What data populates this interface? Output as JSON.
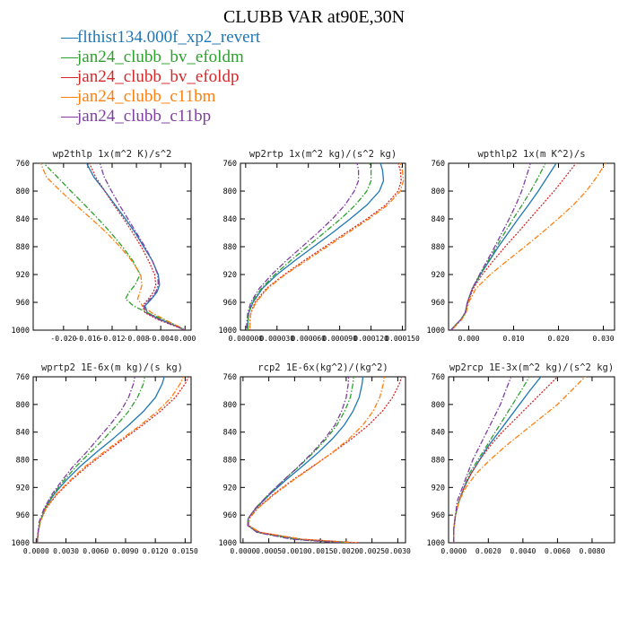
{
  "title": "CLUBB VAR at90E,30N",
  "legend": [
    {
      "name": "flthist134.000f_xp2_revert",
      "color": "#1f77b4",
      "dash": "solid"
    },
    {
      "name": "jan24_clubb_bv_efoldm",
      "color": "#2ca02c",
      "dash": "dashdot"
    },
    {
      "name": "jan24_clubb_bv_efoldp",
      "color": "#d62728",
      "dash": "dotted"
    },
    {
      "name": "jan24_clubb_c11bm",
      "color": "#ff7f0e",
      "dash": "dashdot"
    },
    {
      "name": "jan24_clubb_c11bp",
      "color": "#7f3fa0",
      "dash": "dashdot"
    }
  ],
  "chart_data": [
    {
      "type": "line",
      "title": "wp2thlp  1x(m^2 K)/s^2",
      "xlim": [
        -0.025,
        0.001
      ],
      "ylim": [
        760,
        1000
      ],
      "y_reversed": true,
      "xticks": [
        -0.02,
        -0.016,
        -0.012,
        -0.008,
        -0.004,
        0.0
      ],
      "xtick_labels": [
        "-0.020",
        "-0.016",
        "-0.012",
        "-0.008",
        "-0.004",
        "0.000"
      ],
      "yticks": [
        760,
        800,
        840,
        880,
        920,
        960,
        1000
      ],
      "y": [
        755,
        780,
        800,
        820,
        840,
        860,
        880,
        900,
        920,
        935,
        945,
        955,
        965,
        975,
        985,
        995,
        1000
      ],
      "series": [
        {
          "name": "flthist134.000f_xp2_revert",
          "x": [
            -0.0165,
            -0.015,
            -0.0132,
            -0.0115,
            -0.0098,
            -0.0082,
            -0.0068,
            -0.0054,
            -0.0044,
            -0.0042,
            -0.0046,
            -0.0055,
            -0.0066,
            -0.0062,
            -0.004,
            -0.0012,
            0.0
          ]
        },
        {
          "name": "jan24_clubb_bv_efoldm",
          "x": [
            -0.0238,
            -0.021,
            -0.0188,
            -0.0165,
            -0.0143,
            -0.0122,
            -0.0103,
            -0.0086,
            -0.0074,
            -0.0082,
            -0.0092,
            -0.0098,
            -0.0085,
            -0.0062,
            -0.0035,
            -0.001,
            0.0
          ]
        },
        {
          "name": "jan24_clubb_bv_efoldp",
          "x": [
            -0.016,
            -0.0147,
            -0.0132,
            -0.0117,
            -0.0101,
            -0.0086,
            -0.0072,
            -0.006,
            -0.005,
            -0.0048,
            -0.0052,
            -0.006,
            -0.007,
            -0.0066,
            -0.0044,
            -0.0014,
            0.0
          ]
        },
        {
          "name": "jan24_clubb_c11bm",
          "x": [
            -0.024,
            -0.0228,
            -0.0205,
            -0.018,
            -0.0154,
            -0.0129,
            -0.0107,
            -0.0088,
            -0.0073,
            -0.0071,
            -0.0074,
            -0.0078,
            -0.007,
            -0.0055,
            -0.0033,
            -0.001,
            0.0
          ]
        },
        {
          "name": "jan24_clubb_c11bp",
          "x": [
            -0.0142,
            -0.0133,
            -0.0121,
            -0.0108,
            -0.0094,
            -0.008,
            -0.0066,
            -0.0054,
            -0.0045,
            -0.0044,
            -0.0048,
            -0.0057,
            -0.0068,
            -0.0064,
            -0.0042,
            -0.0013,
            0.0
          ]
        }
      ]
    },
    {
      "type": "line",
      "title": "wp2rtp  1x(m^2 kg)/(s^2 kg)",
      "xlim": [
        -5e-06,
        0.000153
      ],
      "ylim": [
        760,
        1000
      ],
      "y_reversed": true,
      "xticks": [
        0.0,
        3e-05,
        6e-05,
        9e-05,
        0.00012,
        0.00015
      ],
      "xtick_labels": [
        "0.000000",
        "0.000030",
        "0.000060",
        "0.000090",
        "0.000120",
        "0.000150"
      ],
      "yticks": [
        760,
        800,
        840,
        880,
        920,
        960,
        1000
      ],
      "y": [
        755,
        770,
        785,
        800,
        820,
        840,
        860,
        880,
        900,
        920,
        940,
        960,
        975,
        990,
        1000
      ],
      "series": [
        {
          "name": "flthist134.000f_xp2_revert",
          "x": [
            0.000128,
            0.000131,
            0.000132,
            0.000128,
            0.000116,
            0.0001,
            8.3e-05,
            6.5e-05,
            4.7e-05,
            3e-05,
            1.6e-05,
            7e-06,
            3e-06,
            2e-06,
            2e-06
          ]
        },
        {
          "name": "jan24_clubb_bv_efoldm",
          "x": [
            0.000118,
            0.00012,
            0.00012,
            0.000116,
            0.000105,
            9.1e-05,
            7.5e-05,
            5.9e-05,
            4.3e-05,
            2.8e-05,
            1.5e-05,
            6e-06,
            3e-06,
            2e-06,
            2e-06
          ]
        },
        {
          "name": "jan24_clubb_bv_efoldp",
          "x": [
            0.000145,
            0.000148,
            0.000149,
            0.000146,
            0.000134,
            0.000116,
            9.6e-05,
            7.6e-05,
            5.6e-05,
            3.7e-05,
            2e-05,
            9e-06,
            5e-06,
            4e-06,
            4e-06
          ]
        },
        {
          "name": "jan24_clubb_c11bm",
          "x": [
            0.000147,
            0.00015,
            0.000151,
            0.000148,
            0.000136,
            0.000118,
            9.8e-05,
            7.8e-05,
            5.8e-05,
            3.8e-05,
            2.1e-05,
            1e-05,
            5e-06,
            4e-06,
            4e-06
          ]
        },
        {
          "name": "jan24_clubb_c11bp",
          "x": [
            0.000106,
            0.000108,
            0.000108,
            0.000104,
            9.5e-05,
            8.3e-05,
            6.9e-05,
            5.4e-05,
            3.9e-05,
            2.5e-05,
            1.3e-05,
            5e-06,
            2e-06,
            1e-06,
            1e-06
          ]
        }
      ]
    },
    {
      "type": "line",
      "title": "wpthlp2  1x(m K^2)/s",
      "xlim": [
        -0.0045,
        0.0325
      ],
      "ylim": [
        760,
        1000
      ],
      "y_reversed": true,
      "xticks": [
        0.0,
        0.01,
        0.02,
        0.03
      ],
      "xtick_labels": [
        "0.000",
        "0.010",
        "0.020",
        "0.030"
      ],
      "yticks": [
        760,
        800,
        840,
        880,
        920,
        960,
        1000
      ],
      "y": [
        755,
        780,
        800,
        820,
        840,
        860,
        880,
        900,
        920,
        940,
        960,
        975,
        985,
        993,
        1000
      ],
      "series": [
        {
          "name": "flthist134.000f_xp2_revert",
          "x": [
            0.02,
            0.0175,
            0.0155,
            0.0133,
            0.011,
            0.0088,
            0.0066,
            0.0046,
            0.0026,
            0.0008,
            -0.0003,
            -0.0008,
            -0.0018,
            -0.003,
            -0.004
          ]
        },
        {
          "name": "jan24_clubb_bv_efoldm",
          "x": [
            0.0175,
            0.0155,
            0.0138,
            0.0119,
            0.0099,
            0.008,
            0.0062,
            0.0044,
            0.0025,
            0.0008,
            -0.0003,
            -0.0008,
            -0.0018,
            -0.003,
            -0.004
          ]
        },
        {
          "name": "jan24_clubb_bv_efoldp",
          "x": [
            0.0245,
            0.0215,
            0.019,
            0.0163,
            0.0136,
            0.0109,
            0.0081,
            0.0055,
            0.003,
            0.001,
            -0.0002,
            -0.0007,
            -0.0017,
            -0.0029,
            -0.0039
          ]
        },
        {
          "name": "jan24_clubb_c11bm",
          "x": [
            0.031,
            0.0285,
            0.0262,
            0.0233,
            0.0199,
            0.0163,
            0.0125,
            0.0086,
            0.0048,
            0.0016,
            0.0,
            -0.0006,
            -0.0016,
            -0.0028,
            -0.0038
          ]
        },
        {
          "name": "jan24_clubb_c11bp",
          "x": [
            0.014,
            0.0128,
            0.0118,
            0.0105,
            0.009,
            0.0074,
            0.0058,
            0.0041,
            0.0024,
            0.0008,
            -0.0003,
            -0.0008,
            -0.0018,
            -0.003,
            -0.004
          ]
        }
      ]
    },
    {
      "type": "line",
      "title": "wprtp2  1E-6x(m kg)/(s kg)",
      "xlim": [
        -0.0003,
        0.0156
      ],
      "ylim": [
        760,
        1000
      ],
      "y_reversed": true,
      "xticks": [
        0.0,
        0.003,
        0.006,
        0.009,
        0.012,
        0.015
      ],
      "xtick_labels": [
        "0.0000",
        "0.0030",
        "0.0060",
        "0.0090",
        "0.0120",
        "0.0150"
      ],
      "yticks": [
        760,
        800,
        840,
        880,
        920,
        960,
        1000
      ],
      "y": [
        755,
        770,
        790,
        810,
        830,
        850,
        870,
        890,
        910,
        930,
        950,
        970,
        985,
        1000
      ],
      "series": [
        {
          "name": "flthist134.000f_xp2_revert",
          "x": [
            0.013,
            0.0127,
            0.012,
            0.0108,
            0.0093,
            0.0077,
            0.006,
            0.0044,
            0.003,
            0.0018,
            0.0009,
            0.0004,
            0.0002,
            0.0001
          ]
        },
        {
          "name": "jan24_clubb_bv_efoldm",
          "x": [
            0.011,
            0.0108,
            0.0102,
            0.0093,
            0.0081,
            0.0068,
            0.0054,
            0.004,
            0.0028,
            0.0017,
            0.0009,
            0.0004,
            0.0002,
            0.0001
          ]
        },
        {
          "name": "jan24_clubb_bv_efoldp",
          "x": [
            0.0155,
            0.015,
            0.014,
            0.0125,
            0.0107,
            0.0088,
            0.0069,
            0.0051,
            0.0035,
            0.0021,
            0.001,
            0.0004,
            0.0002,
            0.0001
          ]
        },
        {
          "name": "jan24_clubb_c11bm",
          "x": [
            0.015,
            0.0145,
            0.0136,
            0.0122,
            0.0105,
            0.0086,
            0.0067,
            0.0049,
            0.0034,
            0.002,
            0.001,
            0.0004,
            0.0002,
            0.0001
          ]
        },
        {
          "name": "jan24_clubb_c11bp",
          "x": [
            0.01,
            0.0098,
            0.0093,
            0.0085,
            0.0074,
            0.0062,
            0.005,
            0.0037,
            0.0026,
            0.0016,
            0.0008,
            0.0003,
            0.0002,
            0.0001
          ]
        }
      ]
    },
    {
      "type": "line",
      "title": "rcp2  1E-6x(kg^2)/(kg^2)",
      "xlim": [
        -5e-05,
        0.00315
      ],
      "ylim": [
        760,
        1000
      ],
      "y_reversed": true,
      "xticks": [
        0.0,
        0.0005,
        0.001,
        0.0015,
        0.002,
        0.0025,
        0.003
      ],
      "xtick_labels": [
        "0.0000",
        "0.0005",
        "0.0010",
        "0.0015",
        "0.0020",
        "0.0025",
        "0.0030"
      ],
      "yticks": [
        760,
        800,
        840,
        880,
        920,
        960,
        1000
      ],
      "y": [
        755,
        770,
        790,
        810,
        830,
        850,
        870,
        890,
        910,
        930,
        950,
        965,
        975,
        985,
        995,
        1000
      ],
      "series": [
        {
          "name": "flthist134.000f_xp2_revert",
          "x": [
            0.00233,
            0.00231,
            0.00225,
            0.00213,
            0.00196,
            0.00173,
            0.00145,
            0.00114,
            0.00082,
            0.00052,
            0.00025,
            0.0001,
            9e-05,
            0.0003,
            0.0011,
            0.00215
          ]
        },
        {
          "name": "jan24_clubb_bv_efoldm",
          "x": [
            0.00215,
            0.00213,
            0.00208,
            0.00197,
            0.00182,
            0.00161,
            0.00136,
            0.00108,
            0.00078,
            0.0005,
            0.00024,
            0.0001,
            9e-05,
            0.00028,
            0.001,
            0.002
          ]
        },
        {
          "name": "jan24_clubb_bv_efoldp",
          "x": [
            0.0031,
            0.00303,
            0.0029,
            0.0027,
            0.00243,
            0.0021,
            0.00173,
            0.00134,
            0.00095,
            0.00059,
            0.00028,
            0.00012,
            0.00011,
            0.00033,
            0.00115,
            0.00225
          ]
        },
        {
          "name": "jan24_clubb_c11bm",
          "x": [
            0.00275,
            0.00272,
            0.00265,
            0.00252,
            0.00232,
            0.00205,
            0.00172,
            0.00135,
            0.00097,
            0.00061,
            0.00029,
            0.00012,
            0.00011,
            0.00033,
            0.00115,
            0.0022
          ]
        },
        {
          "name": "jan24_clubb_c11bp",
          "x": [
            0.00205,
            0.00204,
            0.002,
            0.00191,
            0.00178,
            0.00158,
            0.00134,
            0.00107,
            0.00078,
            0.0005,
            0.00024,
            0.0001,
            9e-05,
            0.00027,
            0.00095,
            0.0019
          ]
        }
      ]
    },
    {
      "type": "line",
      "title": "wp2rcp  1E-3x(m^2 kg)/(s^2 kg)",
      "xlim": [
        -0.0003,
        0.0093
      ],
      "ylim": [
        760,
        1000
      ],
      "y_reversed": true,
      "xticks": [
        0.0,
        0.002,
        0.004,
        0.006,
        0.008
      ],
      "xtick_labels": [
        "0.0000",
        "0.0020",
        "0.0040",
        "0.0060",
        "0.0080"
      ],
      "yticks": [
        760,
        800,
        840,
        880,
        920,
        960,
        1000
      ],
      "y": [
        755,
        780,
        800,
        820,
        840,
        860,
        880,
        900,
        920,
        940,
        960,
        980,
        1000
      ],
      "series": [
        {
          "name": "flthist134.000f_xp2_revert",
          "x": [
            0.0052,
            0.0044,
            0.0038,
            0.0032,
            0.0026,
            0.002,
            0.0015,
            0.001,
            0.0006,
            0.0003,
            0.0001,
            0.0,
            0.0
          ]
        },
        {
          "name": "jan24_clubb_bv_efoldm",
          "x": [
            0.0045,
            0.0039,
            0.0034,
            0.0029,
            0.0024,
            0.0019,
            0.0014,
            0.0009,
            0.0006,
            0.0003,
            0.0001,
            0.0,
            0.0
          ]
        },
        {
          "name": "jan24_clubb_bv_efoldp",
          "x": [
            0.0062,
            0.0052,
            0.0044,
            0.0036,
            0.0028,
            0.0021,
            0.0015,
            0.001,
            0.0006,
            0.0003,
            0.0001,
            0.0,
            0.0
          ]
        },
        {
          "name": "jan24_clubb_c11bm",
          "x": [
            0.0078,
            0.0068,
            0.006,
            0.005,
            0.004,
            0.003,
            0.0021,
            0.0013,
            0.0007,
            0.0003,
            0.0001,
            0.0,
            0.0
          ]
        },
        {
          "name": "jan24_clubb_c11bp",
          "x": [
            0.0034,
            0.003,
            0.0027,
            0.0023,
            0.0019,
            0.0015,
            0.0011,
            0.0008,
            0.0005,
            0.0002,
            0.0001,
            0.0,
            0.0
          ]
        }
      ]
    }
  ]
}
